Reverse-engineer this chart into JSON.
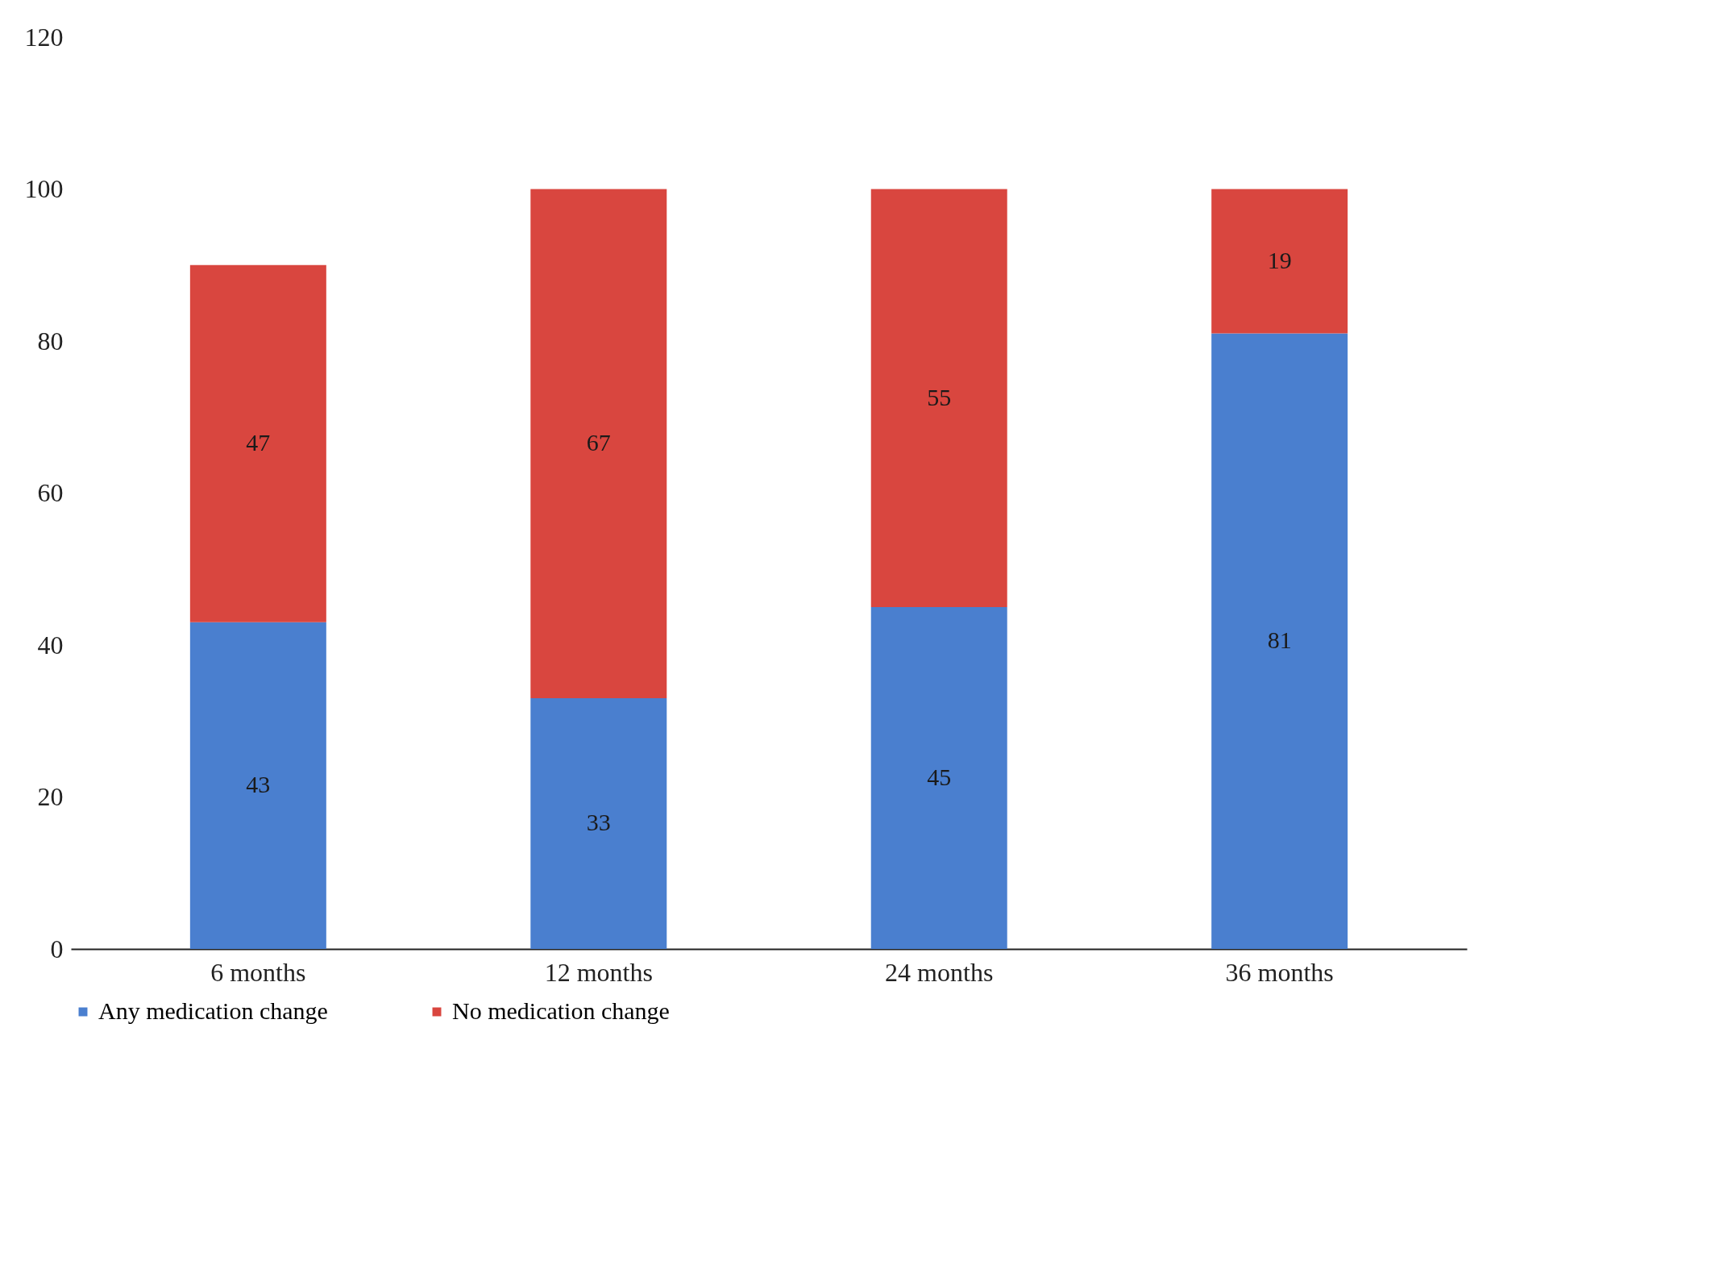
{
  "chart_data": {
    "type": "bar",
    "stacked": true,
    "categories": [
      "6 months",
      "12 months",
      "24 months",
      "36 months"
    ],
    "series": [
      {
        "name": "Any medication change",
        "color": "#4a7fcf",
        "values": [
          43,
          33,
          45,
          81
        ]
      },
      {
        "name": "No medication change",
        "color": "#d9463f",
        "values": [
          47,
          67,
          55,
          19
        ]
      }
    ],
    "ylim": [
      0,
      120
    ],
    "yticks": [
      0,
      20,
      40,
      60,
      80,
      100,
      120
    ],
    "grid": false,
    "legend": "bottom",
    "data_labels": true
  }
}
